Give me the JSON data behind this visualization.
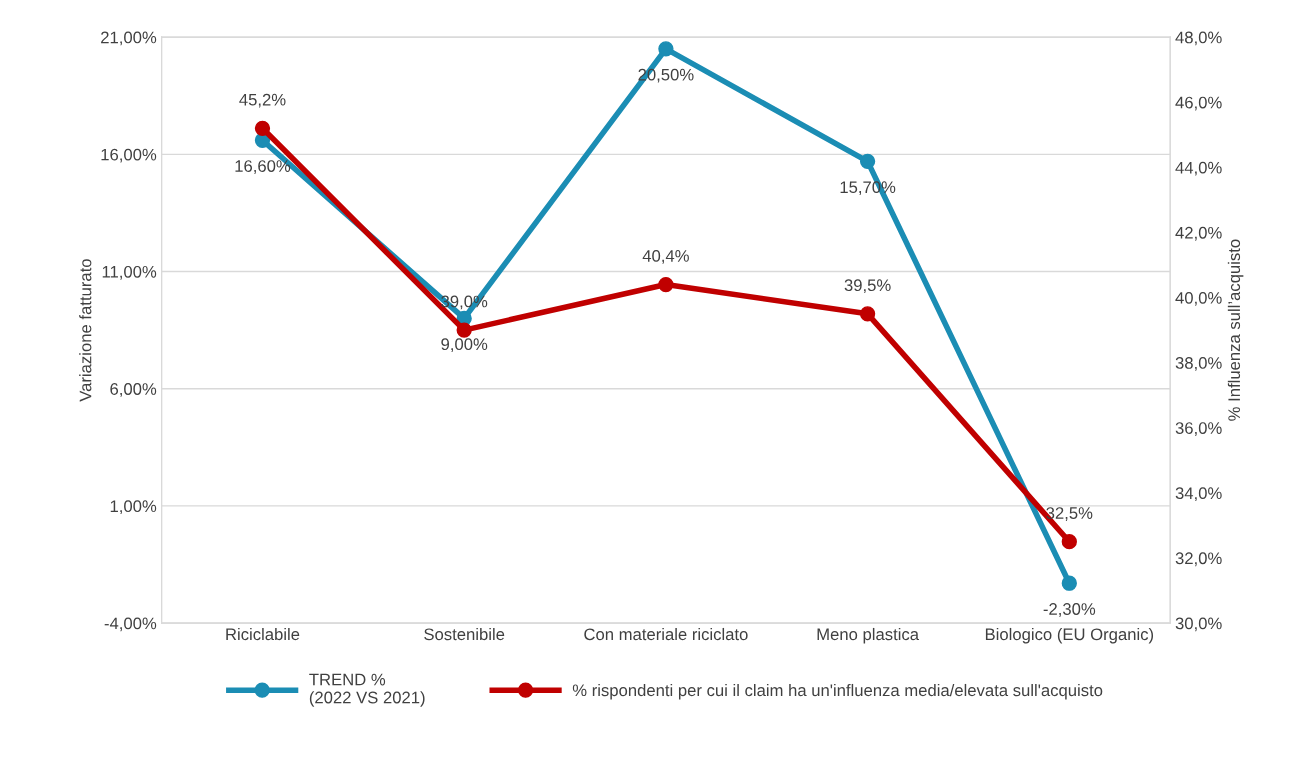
{
  "chart_data": {
    "type": "line",
    "categories": [
      "Riciclabile",
      "Sostenibile",
      "Con materiale riciclato",
      "Meno plastica",
      "Biologico (EU Organic)"
    ],
    "ylabel": "Variazione fatturato",
    "y2label": "% Influenza sull’acquisto",
    "ylim": [
      -4,
      21
    ],
    "yticks": [
      {
        "value": -4,
        "label": "-4,00%"
      },
      {
        "value": 1,
        "label": "1,00%"
      },
      {
        "value": 6,
        "label": "6,00%"
      },
      {
        "value": 11,
        "label": "11,00%"
      },
      {
        "value": 16,
        "label": "16,00%"
      },
      {
        "value": 21,
        "label": "21,00%"
      }
    ],
    "y2lim": [
      30,
      48
    ],
    "y2ticks": [
      {
        "value": 30,
        "label": "30,0%"
      },
      {
        "value": 32,
        "label": "32,0%"
      },
      {
        "value": 34,
        "label": "34,0%"
      },
      {
        "value": 36,
        "label": "36,0%"
      },
      {
        "value": 38,
        "label": "38,0%"
      },
      {
        "value": 40,
        "label": "40,0%"
      },
      {
        "value": 42,
        "label": "42,0%"
      },
      {
        "value": 44,
        "label": "44,0%"
      },
      {
        "value": 46,
        "label": "46,0%"
      },
      {
        "value": 48,
        "label": "48,0%"
      }
    ],
    "grid": "y",
    "legend": "bottom",
    "marker": "circle",
    "line_style": "solid",
    "series": [
      {
        "name": "TREND %\n(2022 VS 2021)",
        "color": "#1b8db4",
        "values": [
          16.6,
          9.0,
          20.5,
          15.7,
          -2.3
        ],
        "value_labels": [
          "16,60%",
          "9,00%",
          "20,50%",
          "15,70%",
          "-2,30%"
        ]
      },
      {
        "name": "% rispondenti per cui il claim ha un'influenza media/elevata sull'acquisto",
        "color": "#c00000",
        "axis": "y2",
        "values": [
          45.2,
          39.0,
          40.4,
          39.5,
          32.5
        ],
        "value_labels": [
          "45,2%",
          "39,0%",
          "40,4%",
          "39,5%",
          "32,5%"
        ]
      }
    ]
  }
}
